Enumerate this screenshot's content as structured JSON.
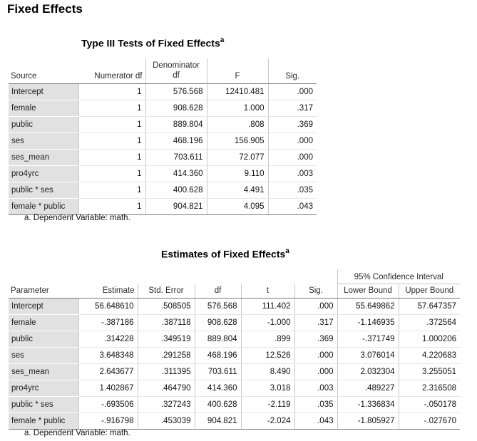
{
  "page_title": "Fixed Effects",
  "type3": {
    "title": "Type III Tests of Fixed Effects",
    "superscript": "a",
    "headers": {
      "source": "Source",
      "numerator_df": "Numerator df",
      "denominator_df_l1": "Denominator",
      "denominator_df_l2": "df",
      "f": "F",
      "sig": "Sig."
    },
    "rows": [
      {
        "source": "Intercept",
        "num_df": "1",
        "den_df": "576.568",
        "f": "12410.481",
        "sig": ".000"
      },
      {
        "source": "female",
        "num_df": "1",
        "den_df": "908.628",
        "f": "1.000",
        "sig": ".317"
      },
      {
        "source": "public",
        "num_df": "1",
        "den_df": "889.804",
        "f": ".808",
        "sig": ".369"
      },
      {
        "source": "ses",
        "num_df": "1",
        "den_df": "468.196",
        "f": "156.905",
        "sig": ".000"
      },
      {
        "source": "ses_mean",
        "num_df": "1",
        "den_df": "703.611",
        "f": "72.077",
        "sig": ".000"
      },
      {
        "source": "pro4yrc",
        "num_df": "1",
        "den_df": "414.360",
        "f": "9.110",
        "sig": ".003"
      },
      {
        "source": "public * ses",
        "num_df": "1",
        "den_df": "400.628",
        "f": "4.491",
        "sig": ".035"
      },
      {
        "source": "female * public",
        "num_df": "1",
        "den_df": "904.821",
        "f": "4.095",
        "sig": ".043"
      }
    ],
    "footnote": "a. Dependent Variable: math."
  },
  "estimates": {
    "title": "Estimates of Fixed Effects",
    "superscript": "a",
    "headers": {
      "parameter": "Parameter",
      "estimate": "Estimate",
      "std_error": "Std. Error",
      "df": "df",
      "t": "t",
      "sig": "Sig.",
      "ci_group": "95% Confidence Interval",
      "lower": "Lower Bound",
      "upper": "Upper Bound"
    },
    "rows": [
      {
        "parameter": "Intercept",
        "estimate": "56.648610",
        "se": ".508505",
        "df": "576.568",
        "t": "111.402",
        "sig": ".000",
        "lower": "55.649862",
        "upper": "57.647357"
      },
      {
        "parameter": "female",
        "estimate": "-.387186",
        "se": ".387118",
        "df": "908.628",
        "t": "-1.000",
        "sig": ".317",
        "lower": "-1.146935",
        "upper": ".372564"
      },
      {
        "parameter": "public",
        "estimate": ".314228",
        "se": ".349519",
        "df": "889.804",
        "t": ".899",
        "sig": ".369",
        "lower": "-.371749",
        "upper": "1.000206"
      },
      {
        "parameter": "ses",
        "estimate": "3.648348",
        "se": ".291258",
        "df": "468.196",
        "t": "12.526",
        "sig": ".000",
        "lower": "3.076014",
        "upper": "4.220683"
      },
      {
        "parameter": "ses_mean",
        "estimate": "2.643677",
        "se": ".311395",
        "df": "703.611",
        "t": "8.490",
        "sig": ".000",
        "lower": "2.032304",
        "upper": "3.255051"
      },
      {
        "parameter": "pro4yrc",
        "estimate": "1.402867",
        "se": ".464790",
        "df": "414.360",
        "t": "3.018",
        "sig": ".003",
        "lower": ".489227",
        "upper": "2.316508"
      },
      {
        "parameter": "public * ses",
        "estimate": "-.693506",
        "se": ".327243",
        "df": "400.628",
        "t": "-2.119",
        "sig": ".035",
        "lower": "-1.336834",
        "upper": "-.050178"
      },
      {
        "parameter": "female * public",
        "estimate": "-.916798",
        "se": ".453039",
        "df": "904.821",
        "t": "-2.024",
        "sig": ".043",
        "lower": "-1.805927",
        "upper": "-.027670"
      }
    ],
    "footnote": "a. Dependent Variable: math."
  }
}
